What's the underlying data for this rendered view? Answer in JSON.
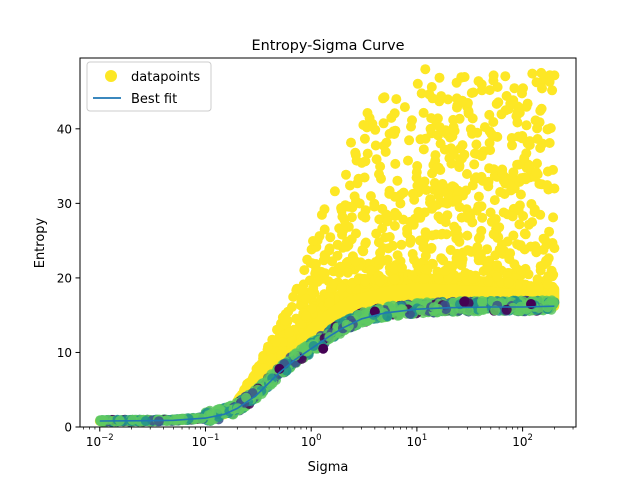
{
  "chart_data": {
    "type": "scatter",
    "title": "Entropy-Sigma Curve",
    "xlabel": "Sigma",
    "ylabel": "Entropy",
    "xscale": "log",
    "xlim": [
      0.0065,
      320
    ],
    "ylim": [
      0,
      49.5
    ],
    "x_ticks": [
      {
        "value": 0.01,
        "base": "10",
        "exp": "−2"
      },
      {
        "value": 0.1,
        "base": "10",
        "exp": "−1"
      },
      {
        "value": 1,
        "base": "10",
        "exp": "0"
      },
      {
        "value": 10,
        "base": "10",
        "exp": "1"
      },
      {
        "value": 100,
        "base": "10",
        "exp": "2"
      }
    ],
    "y_ticks": [
      0,
      10,
      20,
      30,
      40
    ],
    "grid": false,
    "legend": {
      "position": "upper-left",
      "entries": [
        {
          "label": "datapoints",
          "marker": "circle",
          "color": "#fde725"
        },
        {
          "label": "Best fit",
          "marker": "line",
          "color": "#1f77b4"
        }
      ]
    },
    "colormap": [
      "#440154",
      "#3b528b",
      "#21918c",
      "#5ec962",
      "#fde725"
    ],
    "series": [
      {
        "name": "datapoints",
        "kind": "scatter",
        "upper_envelope": [
          {
            "x": 0.01,
            "y": 0.8
          },
          {
            "x": 0.05,
            "y": 1.0
          },
          {
            "x": 0.1,
            "y": 1.4
          },
          {
            "x": 0.2,
            "y": 3.5
          },
          {
            "x": 0.3,
            "y": 8
          },
          {
            "x": 0.5,
            "y": 14
          },
          {
            "x": 0.8,
            "y": 20
          },
          {
            "x": 1.0,
            "y": 25
          },
          {
            "x": 1.5,
            "y": 32
          },
          {
            "x": 2,
            "y": 37
          },
          {
            "x": 3,
            "y": 42
          },
          {
            "x": 5,
            "y": 45
          },
          {
            "x": 10,
            "y": 47
          },
          {
            "x": 30,
            "y": 48
          },
          {
            "x": 100,
            "y": 47.5
          }
        ],
        "dense_upper": [
          {
            "x": 0.2,
            "y": 3
          },
          {
            "x": 0.3,
            "y": 6
          },
          {
            "x": 0.5,
            "y": 10
          },
          {
            "x": 1,
            "y": 15
          },
          {
            "x": 2,
            "y": 18
          },
          {
            "x": 5,
            "y": 19.5
          },
          {
            "x": 10,
            "y": 20
          },
          {
            "x": 50,
            "y": 19.5
          },
          {
            "x": 200,
            "y": 18.5
          }
        ],
        "sample_points": [
          {
            "x": 0.5,
            "y": 7.8
          },
          {
            "x": 1.3,
            "y": 10.5
          },
          {
            "x": 4,
            "y": 15.5
          },
          {
            "x": 28,
            "y": 16.8
          },
          {
            "x": 12,
            "y": 48
          },
          {
            "x": 150,
            "y": 47.5
          },
          {
            "x": 180,
            "y": 46.3
          },
          {
            "x": 200,
            "y": 32
          },
          {
            "x": 200,
            "y": 24
          },
          {
            "x": 120,
            "y": 16.5
          }
        ]
      },
      {
        "name": "Best fit",
        "kind": "line",
        "color": "#1f77b4",
        "points": [
          {
            "x": 0.01,
            "y": 0.8
          },
          {
            "x": 0.03,
            "y": 0.85
          },
          {
            "x": 0.05,
            "y": 0.9
          },
          {
            "x": 0.1,
            "y": 1.2
          },
          {
            "x": 0.15,
            "y": 1.7
          },
          {
            "x": 0.2,
            "y": 2.5
          },
          {
            "x": 0.3,
            "y": 4.2
          },
          {
            "x": 0.5,
            "y": 7.3
          },
          {
            "x": 0.7,
            "y": 9.0
          },
          {
            "x": 1.0,
            "y": 10.5
          },
          {
            "x": 1.5,
            "y": 12.2
          },
          {
            "x": 2,
            "y": 13.3
          },
          {
            "x": 3,
            "y": 14.5
          },
          {
            "x": 5,
            "y": 15.3
          },
          {
            "x": 10,
            "y": 15.8
          },
          {
            "x": 20,
            "y": 16.0
          },
          {
            "x": 50,
            "y": 16.1
          },
          {
            "x": 100,
            "y": 16.1
          },
          {
            "x": 200,
            "y": 16.2
          }
        ]
      }
    ]
  }
}
